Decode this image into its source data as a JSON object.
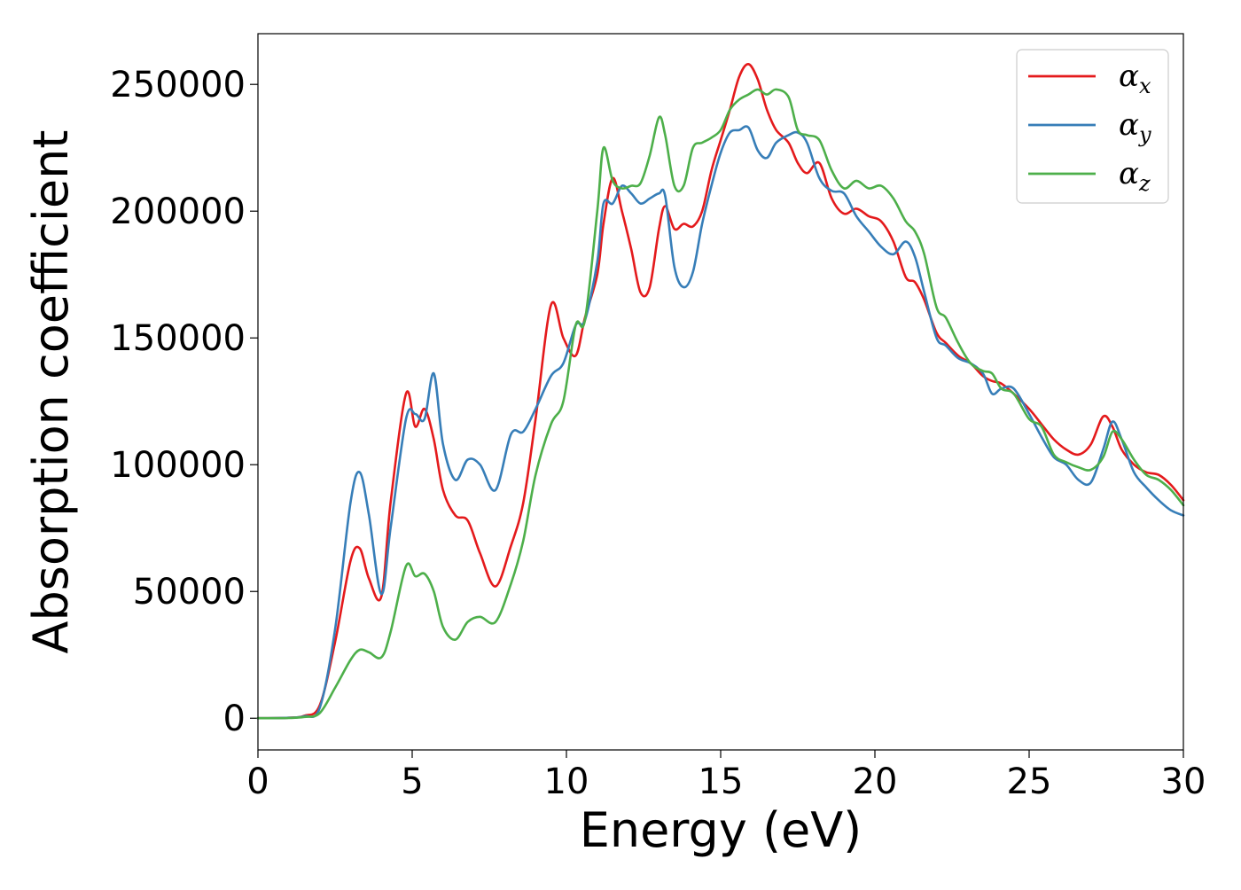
{
  "chart_data": {
    "type": "line",
    "title": "",
    "xlabel": "Energy (eV)",
    "ylabel": "Absorption coefficient",
    "xlim": [
      0,
      30
    ],
    "ylim": [
      -12500,
      270000
    ],
    "xticks": [
      0,
      5,
      10,
      15,
      20,
      25,
      30
    ],
    "xtick_labels": [
      "0",
      "5",
      "10",
      "15",
      "20",
      "25",
      "30"
    ],
    "yticks": [
      0,
      50000,
      100000,
      150000,
      200000,
      250000
    ],
    "ytick_labels": [
      "0",
      "50000",
      "100000",
      "150000",
      "200000",
      "250000"
    ],
    "grid": false,
    "legend_position": "top-right",
    "x": [
      0,
      1,
      1.5,
      2,
      2.5,
      3,
      3.3,
      3.6,
      4,
      4.3,
      4.8,
      5.1,
      5.4,
      5.7,
      6,
      6.4,
      6.8,
      7.2,
      7.7,
      8.2,
      8.6,
      9,
      9.5,
      9.9,
      10.3,
      10.6,
      11,
      11.2,
      11.5,
      11.8,
      12.1,
      12.4,
      12.7,
      13,
      13.2,
      13.5,
      13.8,
      14.1,
      14.4,
      14.7,
      15,
      15.3,
      15.6,
      15.9,
      16.2,
      16.5,
      16.8,
      17.2,
      17.5,
      17.8,
      18.2,
      18.6,
      19,
      19.4,
      19.8,
      20.2,
      20.6,
      21,
      21.3,
      21.6,
      22,
      22.3,
      22.7,
      23.1,
      23.5,
      23.8,
      24.1,
      24.5,
      25,
      25.4,
      25.8,
      26.2,
      26.6,
      27,
      27.4,
      27.7,
      28,
      28.4,
      28.8,
      29.2,
      29.6,
      30
    ],
    "series": [
      {
        "name": "α_x",
        "color": "#e41a1c",
        "values": [
          0,
          200,
          1000,
          5000,
          30000,
          62000,
          67000,
          55000,
          48000,
          85000,
          128000,
          115000,
          122000,
          110000,
          90000,
          80000,
          78000,
          65000,
          52000,
          68000,
          85000,
          118000,
          163000,
          150000,
          143000,
          158000,
          175000,
          195000,
          213000,
          200000,
          185000,
          168000,
          170000,
          193000,
          202000,
          193000,
          195000,
          194000,
          200000,
          216000,
          228000,
          240000,
          253000,
          258000,
          252000,
          240000,
          232000,
          227000,
          219000,
          215000,
          219000,
          205000,
          199000,
          201000,
          198000,
          196000,
          188000,
          174000,
          172000,
          165000,
          152000,
          148000,
          143000,
          140000,
          135000,
          133000,
          132000,
          128000,
          122000,
          116000,
          110000,
          106000,
          104000,
          108000,
          119000,
          115000,
          106000,
          100000,
          97000,
          96000,
          92000,
          86000
        ]
      },
      {
        "name": "α_y",
        "color": "#377eb8",
        "values": [
          0,
          200,
          800,
          4000,
          35000,
          85000,
          97000,
          80000,
          49000,
          75000,
          118000,
          120000,
          118000,
          136000,
          108000,
          94000,
          102000,
          100000,
          90000,
          112000,
          113000,
          122000,
          135000,
          140000,
          155000,
          157000,
          180000,
          203000,
          203000,
          210000,
          207000,
          203000,
          205000,
          207000,
          206000,
          178000,
          170000,
          176000,
          195000,
          210000,
          223000,
          231000,
          232000,
          233000,
          224000,
          221000,
          227000,
          230000,
          231000,
          227000,
          213000,
          208000,
          207000,
          198000,
          192000,
          186000,
          183000,
          188000,
          182000,
          168000,
          150000,
          147000,
          142000,
          140000,
          136000,
          128000,
          130000,
          130000,
          120000,
          111000,
          103000,
          100000,
          94000,
          93000,
          106000,
          117000,
          110000,
          97000,
          91000,
          86000,
          82000,
          80000
        ]
      },
      {
        "name": "α_z",
        "color": "#4daf4a",
        "values": [
          0,
          100,
          500,
          2000,
          12000,
          23000,
          27000,
          26000,
          24000,
          34000,
          60000,
          56000,
          57000,
          50000,
          36000,
          31000,
          38000,
          40000,
          38000,
          53000,
          70000,
          96000,
          116000,
          125000,
          155000,
          157000,
          200000,
          225000,
          212000,
          209000,
          210000,
          211000,
          222000,
          237000,
          230000,
          210000,
          210000,
          225000,
          227000,
          229000,
          232000,
          240000,
          244000,
          246000,
          248000,
          246000,
          248000,
          245000,
          232000,
          230000,
          228000,
          216000,
          209000,
          212000,
          209000,
          210000,
          205000,
          196000,
          192000,
          183000,
          162000,
          158000,
          148000,
          140000,
          137000,
          136000,
          130000,
          128000,
          118000,
          115000,
          104000,
          101000,
          99000,
          98000,
          103000,
          113000,
          110000,
          102000,
          96000,
          94000,
          90000,
          84000
        ]
      }
    ]
  }
}
